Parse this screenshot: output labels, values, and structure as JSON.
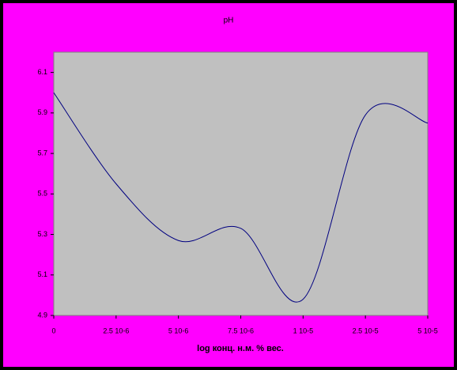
{
  "chart_data": {
    "type": "line",
    "title": "pH",
    "x_label": "log конц. н.м. % вес.",
    "categories": [
      "0",
      "2.5 10-6",
      "5 10-6",
      "7.5 10-6",
      "1 10-5",
      "2.5 10-5",
      "5 10-5"
    ],
    "series": [
      {
        "color": "#000080",
        "values": [
          6.0,
          5.55,
          5.27,
          5.33,
          4.98,
          5.89,
          5.85
        ]
      }
    ],
    "ylim": [
      4.9,
      6.2
    ],
    "yticks": [
      4.9,
      5.1,
      5.3,
      5.5,
      5.7,
      5.9,
      6.1
    ],
    "grid": false,
    "smooth": true
  }
}
